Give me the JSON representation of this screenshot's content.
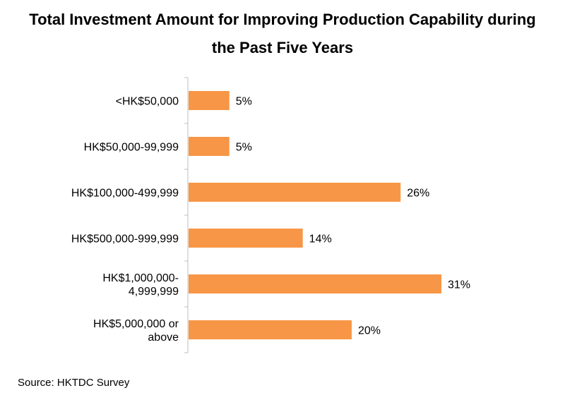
{
  "chart_data": {
    "type": "bar",
    "orientation": "horizontal",
    "title_lines": [
      "Total Investment Amount for Improving Production Capability during",
      "the Past Five Years"
    ],
    "categories": [
      [
        "<HK$50,000"
      ],
      [
        "HK$50,000-99,999"
      ],
      [
        "HK$100,000-499,999"
      ],
      [
        "HK$500,000-999,999"
      ],
      [
        "HK$1,000,000-",
        "4,999,999"
      ],
      [
        "HK$5,000,000 or",
        "above"
      ]
    ],
    "values": [
      5,
      5,
      26,
      14,
      31,
      20
    ],
    "value_labels": [
      "5%",
      "5%",
      "26%",
      "14%",
      "31%",
      "20%"
    ],
    "unit": "%",
    "bar_color": "#F79646",
    "grid": false,
    "legend": "none"
  },
  "source": "Source: HKTDC Survey"
}
